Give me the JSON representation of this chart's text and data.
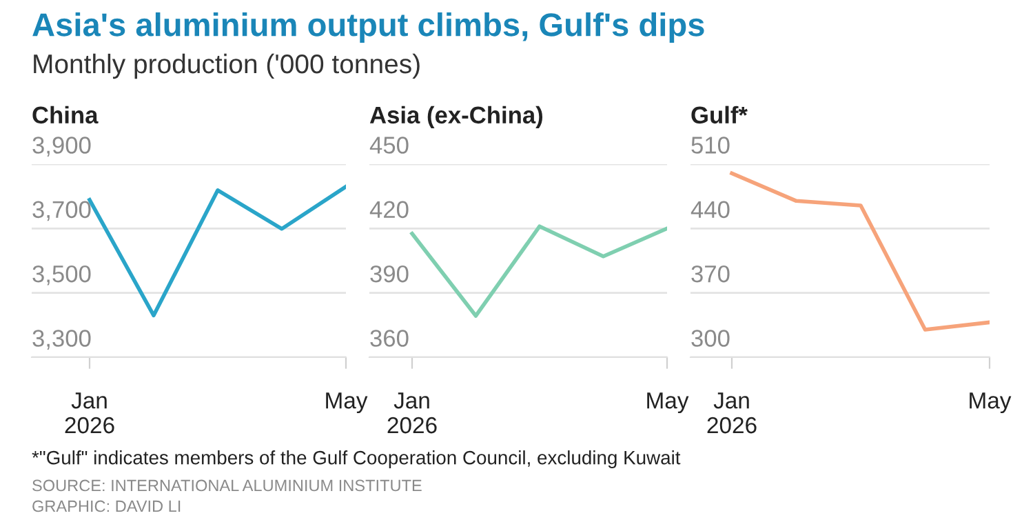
{
  "chart_data": [
    {
      "type": "line",
      "title": "China",
      "annotations": [
        "Asia's aluminium output climbs, Gulf's dips",
        "Monthly production ('000 tonnes)"
      ],
      "categories": [
        "Jan\n2026",
        null,
        null,
        null,
        "May"
      ],
      "series": [
        {
          "color": "#2aa5c9",
          "values": [
            3789,
            3430,
            3819,
            3699,
            3830
          ]
        }
      ],
      "ylim": [
        3300,
        3900
      ],
      "yticks": [
        {
          "value": 3300,
          "label": "3,300"
        },
        {
          "value": 3500,
          "label": "3,500"
        },
        {
          "value": 3700,
          "label": "3,700"
        },
        {
          "value": 3900,
          "label": "3,900"
        }
      ],
      "grid": "y",
      "legend": false
    },
    {
      "type": "line",
      "title": "Asia (ex-China)",
      "categories": [
        "Jan\n2026",
        null,
        null,
        null,
        "May"
      ],
      "series": [
        {
          "color": "#7fcfb0",
          "values": [
            417.6,
            379.3,
            421,
            407,
            420
          ]
        }
      ],
      "ylim": [
        360,
        450
      ],
      "yticks": [
        360,
        390,
        420,
        450
      ],
      "grid": "y",
      "legend": false
    },
    {
      "type": "line",
      "title": "Gulf*",
      "annotations": [
        "*\"Gulf\" indicates members of the Gulf Cooperation Council, excluding Kuwait",
        "SOURCE: INTERNATIONAL ALUMINIUM INSTITUTE",
        "GRAPHIC: DAVID LI"
      ],
      "categories": [
        "Jan\n2026",
        null,
        null,
        null,
        "May"
      ],
      "series": [
        {
          "color": "#f6a37a",
          "values": [
            500,
            470,
            465,
            330,
            338
          ]
        }
      ],
      "ylim": [
        300,
        510
      ],
      "yticks": [
        300,
        370,
        440,
        510
      ],
      "grid": "y",
      "legend": false
    }
  ]
}
